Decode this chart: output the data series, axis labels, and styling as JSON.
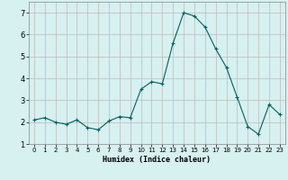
{
  "x": [
    0,
    1,
    2,
    3,
    4,
    5,
    6,
    7,
    8,
    9,
    10,
    11,
    12,
    13,
    14,
    15,
    16,
    17,
    18,
    19,
    20,
    21,
    22,
    23
  ],
  "y": [
    2.1,
    2.2,
    2.0,
    1.9,
    2.1,
    1.75,
    1.65,
    2.05,
    2.25,
    2.2,
    3.5,
    3.85,
    3.75,
    5.6,
    7.0,
    6.85,
    6.35,
    5.35,
    4.5,
    3.15,
    1.8,
    1.45,
    2.8,
    2.35
  ],
  "xlim": [
    -0.5,
    23.5
  ],
  "ylim": [
    1,
    7.5
  ],
  "yticks": [
    1,
    2,
    3,
    4,
    5,
    6,
    7
  ],
  "xticks": [
    0,
    1,
    2,
    3,
    4,
    5,
    6,
    7,
    8,
    9,
    10,
    11,
    12,
    13,
    14,
    15,
    16,
    17,
    18,
    19,
    20,
    21,
    22,
    23
  ],
  "xlabel": "Humidex (Indice chaleur)",
  "line_color": "#006060",
  "marker": "+",
  "bg_color": "#d7f0f0",
  "grid_color": "#c0b8b8",
  "tick_fontsize": 5,
  "xlabel_fontsize": 6,
  "linewidth": 0.8,
  "markersize": 3
}
